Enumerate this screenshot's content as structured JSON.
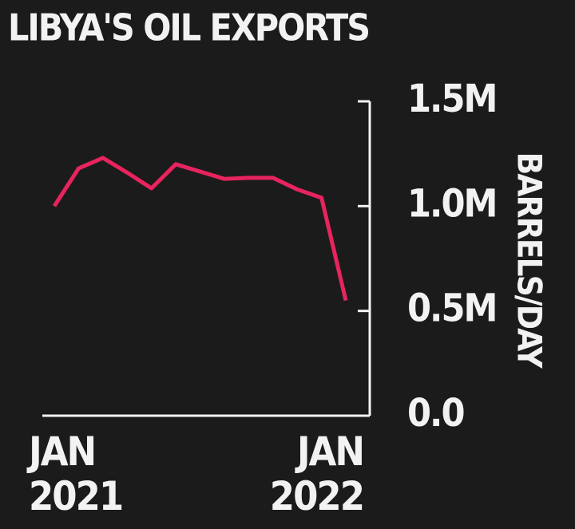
{
  "chart_data": {
    "type": "line",
    "title": "LIBYA'S OIL EXPORTS",
    "y_label": "BARRELS/DAY",
    "categories": [
      "JAN 2021",
      null,
      null,
      null,
      null,
      null,
      null,
      null,
      null,
      null,
      null,
      null,
      "JAN 2022"
    ],
    "values": [
      1000000,
      1180000,
      1230000,
      1160000,
      1085000,
      1200000,
      1165000,
      1130000,
      1135000,
      1135000,
      1080000,
      1040000,
      550000
    ],
    "color": "#e8245f",
    "ylim": [
      0,
      1500000
    ],
    "yticks": [
      {
        "value": 0,
        "label": "0.0"
      },
      {
        "value": 500000,
        "label": "0.5M"
      },
      {
        "value": 1000000,
        "label": "1.0M"
      },
      {
        "value": 1500000,
        "label": "1.5M"
      }
    ]
  }
}
